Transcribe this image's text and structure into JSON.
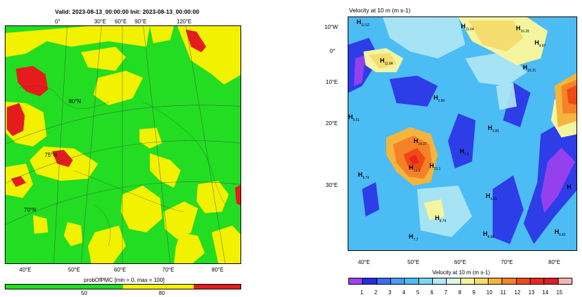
{
  "left_map": {
    "title": "Valid: 2023-08-13_00:00:00 Init: 2023-08-13_00:00:00",
    "top_lon_labels": [
      "0°",
      "30°E",
      "60°E",
      "90°E",
      "120°E"
    ],
    "bottom_lon_labels": [
      "40°E",
      "50°E",
      "60°E",
      "70°E",
      "80°E"
    ],
    "inner_lat_labels": [
      "80°N",
      "75°N",
      "70°N"
    ],
    "legend_title": "probOfPMC [min = 0, max = 100]",
    "legend_ticks": [
      "50",
      "80"
    ],
    "legend_colors": [
      "#22dd22",
      "#f2f200",
      "#e61c1c"
    ],
    "legend_fractions": [
      0.5,
      0.3,
      0.2
    ]
  },
  "right_map": {
    "title": "Velocity at 10 m   (m s-1)",
    "lat_labels": [
      "10°W",
      "0°",
      "10°E",
      "20°E",
      "30°E"
    ],
    "lon_labels": [
      "40°E",
      "50°E",
      "60°E",
      "70°E",
      "80°E"
    ],
    "legend_title": "Velocity at 10 m   (m s-1)",
    "legend_ticks": [
      "1",
      "2",
      "3",
      "4",
      "5",
      "6",
      "7",
      "8",
      "9",
      "10",
      "11",
      "12",
      "13",
      "14",
      "15"
    ],
    "legend_colors": [
      "#a040f0",
      "#2828e6",
      "#3c6cf0",
      "#4a9cf5",
      "#4cbcf5",
      "#80d4f5",
      "#b0e8f5",
      "#dcf5e6",
      "#f5f5a0",
      "#f5dc6e",
      "#f5b43c",
      "#f58228",
      "#f04a14",
      "#e6281e",
      "#dc1e28",
      "#f5b4b4"
    ],
    "highs": [
      {
        "h": "H",
        "v": "11.52"
      },
      {
        "h": "H",
        "v": "11.64"
      },
      {
        "h": "H",
        "v": "10.28"
      },
      {
        "h": "H",
        "v": "9.87"
      },
      {
        "h": "H",
        "v": "11.64"
      },
      {
        "h": "H",
        "v": "10.21"
      },
      {
        "h": "H",
        "v": "2.85"
      },
      {
        "h": "H",
        "v": "9.51"
      },
      {
        "h": "H",
        "v": "2.85"
      },
      {
        "h": "H",
        "v": "14.27"
      },
      {
        "h": "H",
        "v": "14.9"
      },
      {
        "h": "H",
        "v": "13.1"
      },
      {
        "h": "H",
        "v": "7.1"
      },
      {
        "h": "H",
        "v": "9.76"
      },
      {
        "h": "H",
        "v": "4.01"
      },
      {
        "h": "H",
        "v": "8.79"
      },
      {
        "h": "H",
        "v": "7.7"
      },
      {
        "h": "H",
        "v": "4.92"
      },
      {
        "h": "H",
        "v": "6.82"
      },
      {
        "h": "H",
        "v": ""
      }
    ]
  }
}
